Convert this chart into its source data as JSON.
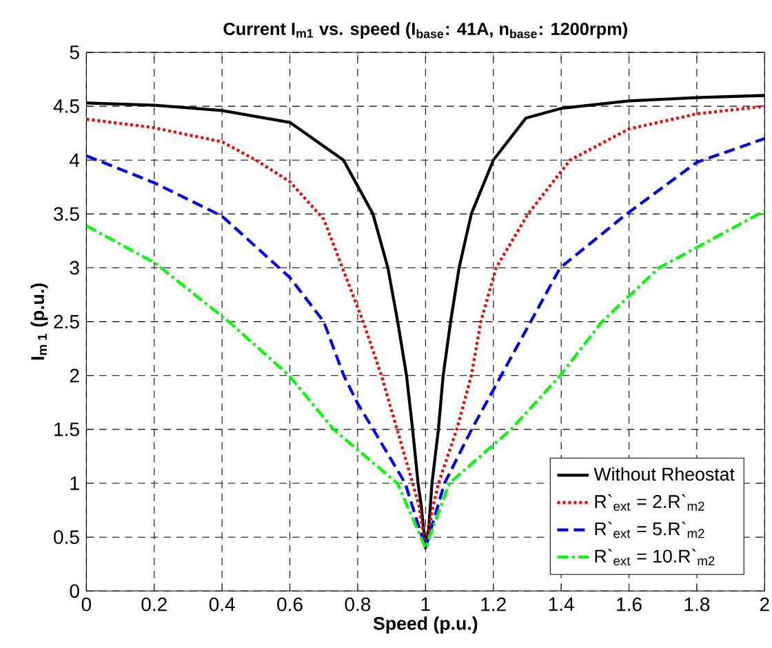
{
  "chart_data": {
    "type": "line",
    "title": "**Current I$_{m1}$ vs. speed (I$_{base}$: 41A, n$_{base}$: 1200rpm)**",
    "xlabel": "**Speed (p.u.)**",
    "ylabel": "**I$_{m 1}$ (p.u.)**",
    "xlim": [
      0,
      2
    ],
    "ylim": [
      0,
      5
    ],
    "xticks": [
      0,
      0.2,
      0.4,
      0.6,
      0.8,
      1,
      1.2,
      1.4,
      1.6,
      1.8,
      2
    ],
    "yticks": [
      0,
      0.5,
      1,
      1.5,
      2,
      2.5,
      3,
      3.5,
      4,
      4.5,
      5
    ],
    "grid": true,
    "legend": "bottom right",
    "series": [
      {
        "name": "Without Rheostat",
        "color": "#000000",
        "line_style": "solid",
        "x": [
          0,
          0.2,
          0.4,
          0.6,
          0.758,
          0.845,
          0.889,
          0.918,
          0.944,
          0.962,
          0.978,
          0.987,
          1,
          1.01,
          1.019,
          1.038,
          1.052,
          1.074,
          1.099,
          1.135,
          1.2,
          1.296,
          1.4,
          1.6,
          1.8,
          2
        ],
        "values": [
          4.53,
          4.51,
          4.46,
          4.35,
          4.0,
          3.5,
          3.0,
          2.5,
          2.0,
          1.5,
          1.0,
          0.8,
          0.4,
          0.6,
          1.0,
          1.5,
          2.0,
          2.5,
          3.0,
          3.5,
          4.0,
          4.39,
          4.48,
          4.55,
          4.58,
          4.6
        ]
      },
      {
        "name": "R`$_{ext}$ = 2.R`$_{m2}$",
        "color": "#ff0000",
        "line_style": "dotted",
        "x": [
          0,
          0.2,
          0.4,
          0.5,
          0.6,
          0.7,
          0.816,
          0.87,
          0.916,
          0.962,
          0.98,
          1,
          1.02,
          1.038,
          1.092,
          1.135,
          1.163,
          1.208,
          1.302,
          1.426,
          1.6,
          1.8,
          2
        ],
        "values": [
          4.38,
          4.3,
          4.17,
          4.0,
          3.8,
          3.45,
          2.5,
          2.0,
          1.5,
          1.0,
          0.8,
          0.4,
          0.75,
          1.0,
          1.5,
          2.0,
          2.5,
          3.0,
          3.5,
          4.0,
          4.29,
          4.43,
          4.5
        ]
      },
      {
        "name": "R`$_{ext}$ = 5.R`$_{m2}$",
        "color": "#0000ff",
        "line_style": "dashed",
        "x": [
          0,
          0.2,
          0.4,
          0.6,
          0.7,
          0.759,
          0.8,
          0.846,
          0.94,
          1,
          1.056,
          1.136,
          1.223,
          1.31,
          1.397,
          1.593,
          1.8,
          2
        ],
        "values": [
          4.04,
          3.79,
          3.48,
          2.91,
          2.5,
          2.0,
          1.74,
          1.5,
          1.0,
          0.4,
          1.0,
          1.5,
          2.0,
          2.5,
          3.0,
          3.5,
          3.98,
          4.2
        ]
      },
      {
        "name": "R`$_{ext}$ = 10.R`$_{m2}$",
        "color": "#00ff00",
        "line_style": "dashdot",
        "x": [
          0,
          0.2,
          0.42,
          0.598,
          0.729,
          0.917,
          1,
          1.07,
          1.252,
          1.397,
          1.52,
          1.688,
          2
        ],
        "values": [
          3.39,
          3.05,
          2.5,
          2.0,
          1.5,
          1.0,
          0.4,
          1.0,
          1.5,
          2.0,
          2.5,
          3.0,
          3.53
        ]
      }
    ]
  }
}
